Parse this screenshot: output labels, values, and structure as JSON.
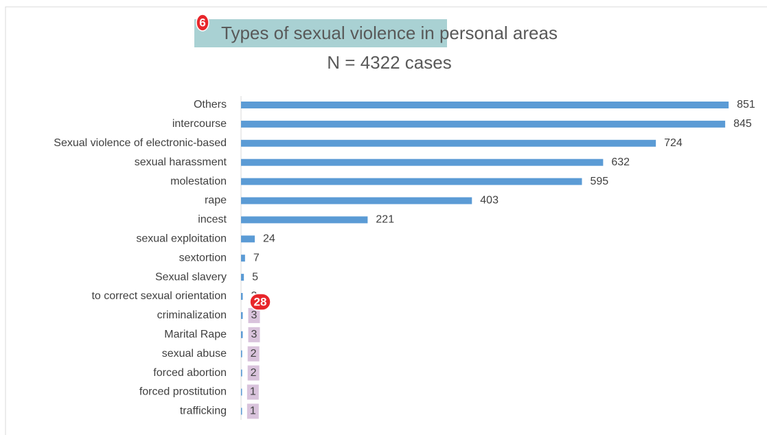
{
  "chart_data": {
    "type": "bar",
    "orientation": "horizontal",
    "title": "Types of sexual violence in personal areas",
    "subtitle": "N = 4322 cases",
    "categories": [
      "Others",
      "intercourse",
      "Sexual violence of electronic-based",
      "sexual harassment",
      "molestation",
      "rape",
      "incest",
      "sexual exploitation",
      "sextortion",
      "Sexual slavery",
      "to correct sexual orientation",
      "criminalization",
      "Marital Rape",
      "sexual abuse",
      "forced abortion",
      "forced prostitution",
      "trafficking"
    ],
    "values": [
      851,
      845,
      724,
      632,
      595,
      403,
      221,
      24,
      7,
      5,
      3,
      3,
      3,
      2,
      2,
      1,
      1
    ],
    "color": "#5b9bd5",
    "xlim": [
      0,
      900
    ],
    "annotations": [
      "6",
      "28"
    ]
  }
}
